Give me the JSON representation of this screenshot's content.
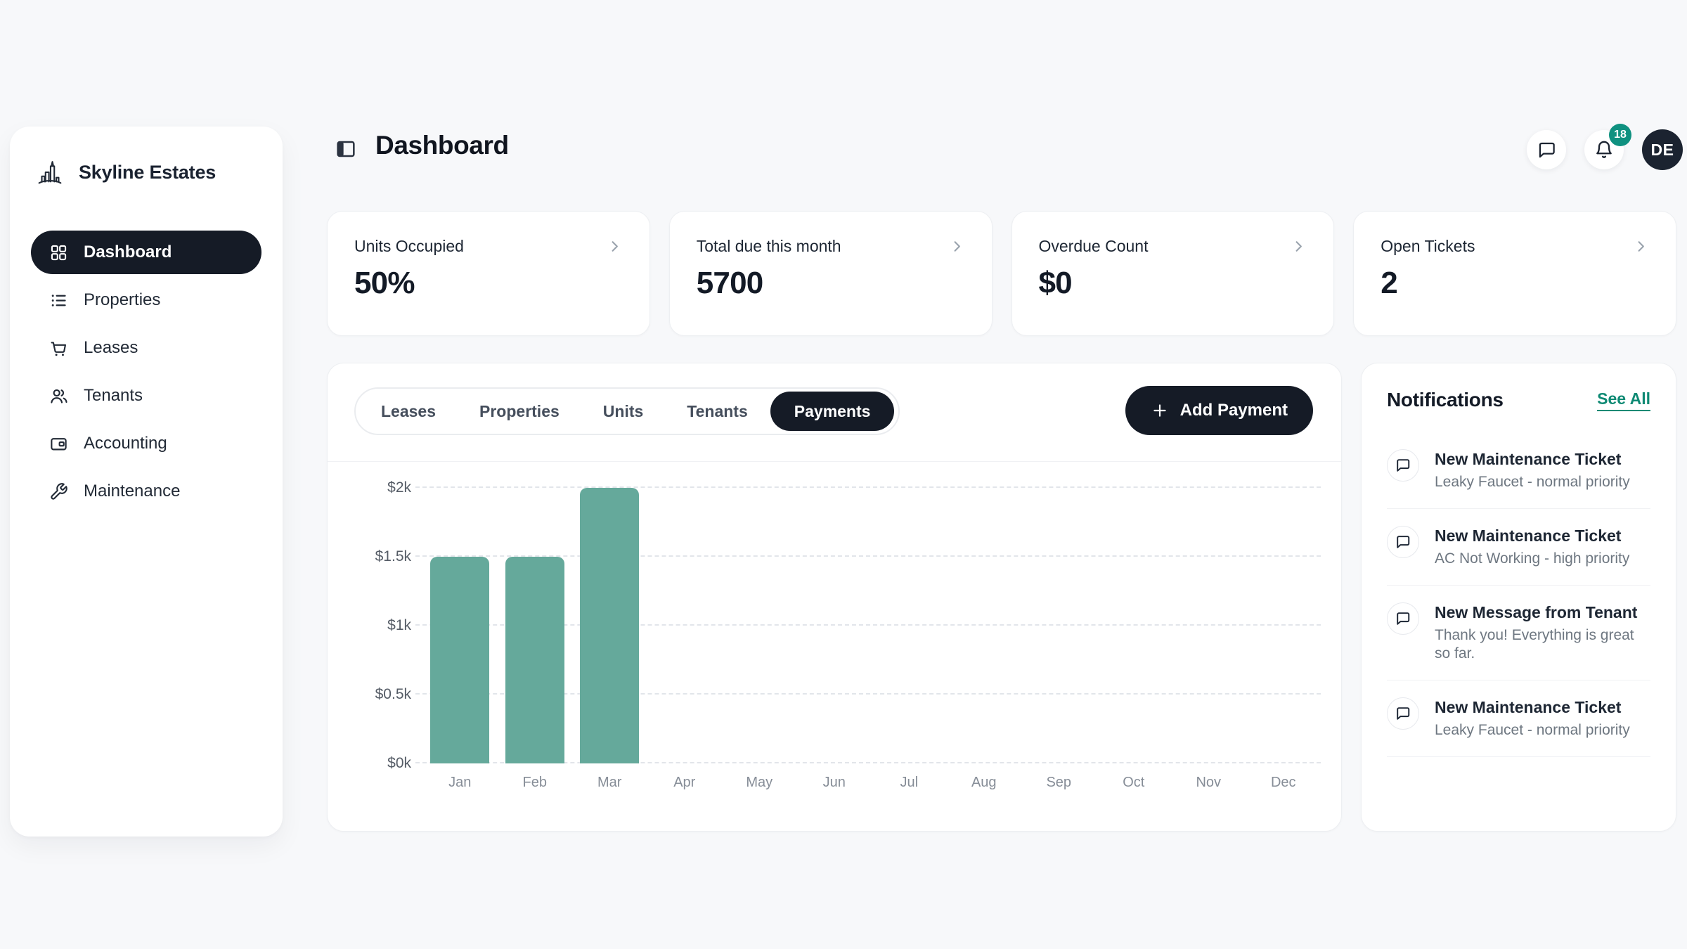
{
  "brand": {
    "name": "Skyline Estates"
  },
  "sidebar": {
    "items": [
      {
        "label": "Dashboard",
        "icon": "grid-icon",
        "active": true
      },
      {
        "label": "Properties",
        "icon": "list-icon",
        "active": false
      },
      {
        "label": "Leases",
        "icon": "cart-icon",
        "active": false
      },
      {
        "label": "Tenants",
        "icon": "users-icon",
        "active": false
      },
      {
        "label": "Accounting",
        "icon": "wallet-icon",
        "active": false
      },
      {
        "label": "Maintenance",
        "icon": "wrench-icon",
        "active": false
      }
    ]
  },
  "header": {
    "title": "Dashboard",
    "notification_count": "18",
    "avatar_initials": "DE"
  },
  "stats": [
    {
      "label": "Units Occupied",
      "value": "50%"
    },
    {
      "label": "Total due this month",
      "value": "5700"
    },
    {
      "label": "Overdue Count",
      "value": "$0"
    },
    {
      "label": "Open Tickets",
      "value": "2"
    }
  ],
  "main": {
    "tabs": [
      {
        "label": "Leases",
        "active": false
      },
      {
        "label": "Properties",
        "active": false
      },
      {
        "label": "Units",
        "active": false
      },
      {
        "label": "Tenants",
        "active": false
      },
      {
        "label": "Payments",
        "active": true
      }
    ],
    "add_button_label": "Add Payment"
  },
  "chart_data": {
    "type": "bar",
    "categories": [
      "Jan",
      "Feb",
      "Mar",
      "Apr",
      "May",
      "Jun",
      "Jul",
      "Aug",
      "Sep",
      "Oct",
      "Nov",
      "Dec"
    ],
    "values": [
      1500,
      1500,
      2000,
      0,
      0,
      0,
      0,
      0,
      0,
      0,
      0,
      0
    ],
    "title": "",
    "xlabel": "",
    "ylabel": "",
    "ylim": [
      0,
      2000
    ],
    "ytick_labels": [
      "$0k",
      "$0.5k",
      "$1k",
      "$1.5k",
      "$2k"
    ],
    "grid": "horizontal-dashed",
    "legend": "none",
    "bar_color": "#65a99b"
  },
  "notifications": {
    "title": "Notifications",
    "see_all_label": "See All",
    "items": [
      {
        "title": "New Maintenance Ticket",
        "subtitle": "Leaky Faucet - normal priority"
      },
      {
        "title": "New Maintenance Ticket",
        "subtitle": "AC Not Working - high priority"
      },
      {
        "title": "New Message from Tenant",
        "subtitle": "Thank you! Everything is great so far."
      },
      {
        "title": "New Maintenance Ticket",
        "subtitle": "Leaky Faucet - normal priority"
      }
    ],
    "partial_fifth_item_visible": true
  },
  "colors": {
    "accent_teal": "#0f8a74",
    "badge_teal": "#0f9180",
    "bar_teal": "#65a99b",
    "dark_navy": "#151b26",
    "page_background": "#f7f8fa"
  }
}
